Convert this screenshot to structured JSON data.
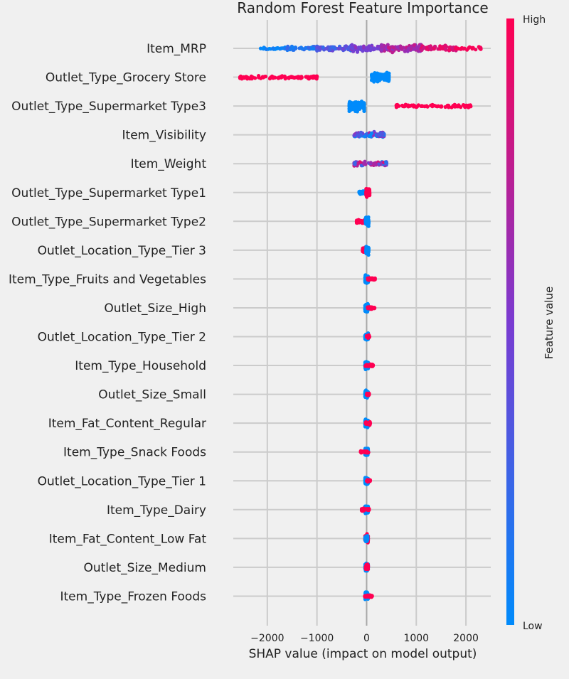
{
  "chart_data": {
    "type": "scatter",
    "subtype": "shap-beeswarm",
    "title": "Random Forest Feature Importance",
    "xlabel": "SHAP value (impact on model output)",
    "ylabel": "",
    "xlim": [
      -2800,
      2500
    ],
    "xticks": [
      {
        "value": -2000,
        "label": "−2000"
      },
      {
        "value": -1000,
        "label": "−1000"
      },
      {
        "value": 0,
        "label": "0"
      },
      {
        "value": 1000,
        "label": "1000"
      },
      {
        "value": 2000,
        "label": "2000"
      }
    ],
    "grid": true,
    "colorbar": {
      "title": "Feature value",
      "high_label": "High",
      "low_label": "Low",
      "high_color": "#ff0052",
      "mid_color": "#7a3bd1",
      "low_color": "#008bfb"
    },
    "features": [
      {
        "name": "Item_MRP",
        "clusters": [
          {
            "min": -2150,
            "max": -1600,
            "n": 25,
            "v": [
              0.0,
              0.1
            ],
            "s": 2.5
          },
          {
            "min": -1600,
            "max": -1000,
            "n": 60,
            "v": [
              0.05,
              0.25
            ],
            "s": 3.5
          },
          {
            "min": -1000,
            "max": -300,
            "n": 80,
            "v": [
              0.2,
              0.45
            ],
            "s": 5
          },
          {
            "min": -300,
            "max": 300,
            "n": 70,
            "v": [
              0.4,
              0.6
            ],
            "s": 6
          },
          {
            "min": 300,
            "max": 1100,
            "n": 110,
            "v": [
              0.55,
              0.8
            ],
            "s": 7
          },
          {
            "min": 1100,
            "max": 1800,
            "n": 70,
            "v": [
              0.8,
              0.95
            ],
            "s": 5
          },
          {
            "min": 1800,
            "max": 2300,
            "n": 25,
            "v": [
              0.95,
              1.0
            ],
            "s": 2.5
          }
        ]
      },
      {
        "name": "Outlet_Type_Grocery Store",
        "clusters": [
          {
            "min": -2550,
            "max": -1000,
            "n": 120,
            "v": [
              1.0,
              1.0
            ],
            "s": 3
          },
          {
            "min": 100,
            "max": 450,
            "n": 110,
            "v": [
              0.0,
              0.0
            ],
            "s": 9
          }
        ]
      },
      {
        "name": "Outlet_Type_Supermarket Type3",
        "clusters": [
          {
            "min": -350,
            "max": -50,
            "n": 110,
            "v": [
              0.0,
              0.0
            ],
            "s": 9
          },
          {
            "min": 600,
            "max": 2100,
            "n": 90,
            "v": [
              1.0,
              1.0
            ],
            "s": 2.5
          }
        ]
      },
      {
        "name": "Item_Visibility",
        "clusters": [
          {
            "min": -250,
            "max": 350,
            "n": 100,
            "v": [
              0.0,
              0.7
            ],
            "s": 5
          }
        ]
      },
      {
        "name": "Item_Weight",
        "clusters": [
          {
            "min": -250,
            "max": 400,
            "n": 90,
            "v": [
              0.1,
              0.9
            ],
            "s": 5
          }
        ]
      },
      {
        "name": "Outlet_Type_Supermarket Type1",
        "clusters": [
          {
            "min": -150,
            "max": -10,
            "n": 60,
            "v": [
              0.0,
              0.0
            ],
            "s": 3
          },
          {
            "min": -10,
            "max": 60,
            "n": 80,
            "v": [
              1.0,
              1.0
            ],
            "s": 7
          }
        ]
      },
      {
        "name": "Outlet_Type_Supermarket Type2",
        "clusters": [
          {
            "min": -200,
            "max": -20,
            "n": 60,
            "v": [
              1.0,
              1.0
            ],
            "s": 3
          },
          {
            "min": -20,
            "max": 40,
            "n": 90,
            "v": [
              0.0,
              0.0
            ],
            "s": 8
          }
        ]
      },
      {
        "name": "Outlet_Location_Type_Tier 3",
        "clusters": [
          {
            "min": -80,
            "max": 10,
            "n": 60,
            "v": [
              1.0,
              1.0
            ],
            "s": 5
          },
          {
            "min": -10,
            "max": 40,
            "n": 80,
            "v": [
              0.0,
              0.0
            ],
            "s": 7
          }
        ]
      },
      {
        "name": "Item_Type_Fruits and Vegetables",
        "clusters": [
          {
            "min": -30,
            "max": 30,
            "n": 90,
            "v": [
              0.0,
              0.0
            ],
            "s": 7
          },
          {
            "min": 20,
            "max": 170,
            "n": 30,
            "v": [
              1.0,
              1.0
            ],
            "s": 2.5
          }
        ]
      },
      {
        "name": "Outlet_Size_High",
        "clusters": [
          {
            "min": -30,
            "max": 30,
            "n": 90,
            "v": [
              0.0,
              0.0
            ],
            "s": 7
          },
          {
            "min": 20,
            "max": 160,
            "n": 30,
            "v": [
              1.0,
              1.0
            ],
            "s": 2.5
          }
        ]
      },
      {
        "name": "Outlet_Location_Type_Tier 2",
        "clusters": [
          {
            "min": -30,
            "max": 30,
            "n": 90,
            "v": [
              0.0,
              0.0
            ],
            "s": 7
          },
          {
            "min": 0,
            "max": 60,
            "n": 20,
            "v": [
              1.0,
              1.0
            ],
            "s": 2.5
          }
        ]
      },
      {
        "name": "Item_Type_Household",
        "clusters": [
          {
            "min": -30,
            "max": 30,
            "n": 90,
            "v": [
              0.0,
              0.0
            ],
            "s": 7
          },
          {
            "min": -30,
            "max": 130,
            "n": 30,
            "v": [
              1.0,
              1.0
            ],
            "s": 2.5
          }
        ]
      },
      {
        "name": "Outlet_Size_Small",
        "clusters": [
          {
            "min": -30,
            "max": 30,
            "n": 90,
            "v": [
              0.0,
              0.0
            ],
            "s": 7
          },
          {
            "min": 0,
            "max": 50,
            "n": 15,
            "v": [
              1.0,
              1.0
            ],
            "s": 2.5
          }
        ]
      },
      {
        "name": "Item_Fat_Content_Regular",
        "clusters": [
          {
            "min": -30,
            "max": 30,
            "n": 90,
            "v": [
              0.0,
              0.0
            ],
            "s": 7
          },
          {
            "min": -20,
            "max": 70,
            "n": 35,
            "v": [
              1.0,
              1.0
            ],
            "s": 3
          }
        ]
      },
      {
        "name": "Item_Type_Snack Foods",
        "clusters": [
          {
            "min": -30,
            "max": 30,
            "n": 90,
            "v": [
              0.0,
              0.0
            ],
            "s": 7
          },
          {
            "min": -120,
            "max": 40,
            "n": 30,
            "v": [
              1.0,
              1.0
            ],
            "s": 2.5
          }
        ]
      },
      {
        "name": "Outlet_Location_Type_Tier 1",
        "clusters": [
          {
            "min": -30,
            "max": 30,
            "n": 90,
            "v": [
              0.0,
              0.0
            ],
            "s": 7
          },
          {
            "min": 0,
            "max": 70,
            "n": 20,
            "v": [
              1.0,
              1.0
            ],
            "s": 2.5
          }
        ]
      },
      {
        "name": "Item_Type_Dairy",
        "clusters": [
          {
            "min": -30,
            "max": 30,
            "n": 90,
            "v": [
              0.0,
              0.0
            ],
            "s": 7
          },
          {
            "min": -100,
            "max": 50,
            "n": 30,
            "v": [
              1.0,
              1.0
            ],
            "s": 2.5
          }
        ]
      },
      {
        "name": "Item_Fat_Content_Low Fat",
        "clusters": [
          {
            "min": -30,
            "max": 30,
            "n": 70,
            "v": [
              1.0,
              1.0
            ],
            "s": 7
          },
          {
            "min": -30,
            "max": 20,
            "n": 50,
            "v": [
              0.0,
              0.0
            ],
            "s": 5
          }
        ]
      },
      {
        "name": "Outlet_Size_Medium",
        "clusters": [
          {
            "min": -30,
            "max": 30,
            "n": 80,
            "v": [
              0.0,
              0.0
            ],
            "s": 7
          },
          {
            "min": -20,
            "max": 30,
            "n": 40,
            "v": [
              1.0,
              1.0
            ],
            "s": 5
          }
        ]
      },
      {
        "name": "Item_Type_Frozen Foods",
        "clusters": [
          {
            "min": -30,
            "max": 30,
            "n": 90,
            "v": [
              0.0,
              0.0
            ],
            "s": 7
          },
          {
            "min": -40,
            "max": 110,
            "n": 30,
            "v": [
              1.0,
              1.0
            ],
            "s": 2.5
          }
        ]
      }
    ]
  }
}
